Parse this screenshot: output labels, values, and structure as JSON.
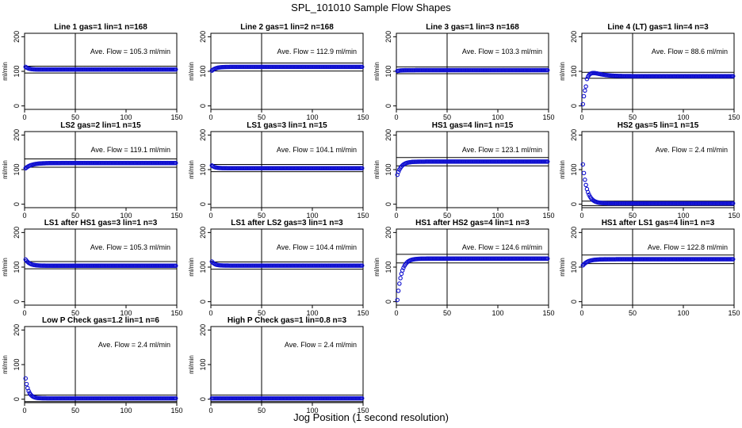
{
  "figure": {
    "title": "SPL_101010  Sample Flow Shapes",
    "xlabel": "Jog Position (1 second resolution)"
  },
  "chart_data": [
    {
      "type": "scatter",
      "title": "Line 1 gas=1 lin=1 n=168",
      "ylabel": "ml/min",
      "annotation": "Ave. Flow =  105.3  ml/min",
      "xlim": [
        0,
        150
      ],
      "ylim": [
        -10,
        210
      ],
      "x_ticks": [
        0,
        50,
        100,
        150
      ],
      "y_ticks": [
        0,
        100,
        200
      ],
      "vline": 50,
      "hlines": [
        95,
        115
      ],
      "profile": {
        "start": 113,
        "steady": 105.3,
        "tau": 3
      }
    },
    {
      "type": "scatter",
      "title": "Line 2 gas=1 lin=2 n=168",
      "ylabel": "ml/min",
      "annotation": "Ave. Flow =  112.9  ml/min",
      "xlim": [
        0,
        150
      ],
      "ylim": [
        -10,
        210
      ],
      "x_ticks": [
        0,
        50,
        100,
        150
      ],
      "y_ticks": [
        0,
        100,
        200
      ],
      "vline": 50,
      "hlines": [
        101,
        124
      ],
      "profile": {
        "start": 102,
        "steady": 112.9,
        "tau": 4
      }
    },
    {
      "type": "scatter",
      "title": "Line 3 gas=1 lin=3 n=168",
      "ylabel": "ml/min",
      "annotation": "Ave. Flow =  103.3  ml/min",
      "xlim": [
        0,
        150
      ],
      "ylim": [
        -10,
        210
      ],
      "x_ticks": [
        0,
        50,
        100,
        150
      ],
      "y_ticks": [
        0,
        100,
        200
      ],
      "vline": 50,
      "hlines": [
        93,
        113
      ],
      "profile": {
        "start": 101,
        "steady": 103.3,
        "tau": 3
      }
    },
    {
      "type": "scatter",
      "title": "Line 4 (LT) gas=1 lin=4 n=3",
      "ylabel": "ml/min",
      "annotation": "Ave. Flow =  88.6  ml/min",
      "xlim": [
        0,
        150
      ],
      "ylim": [
        -10,
        210
      ],
      "x_ticks": [
        0,
        50,
        100,
        150
      ],
      "y_ticks": [
        0,
        100,
        200
      ],
      "vline": 50,
      "hlines": [
        80,
        97
      ],
      "profile": {
        "start": 5,
        "steady": 86,
        "tau": 3,
        "overshoot": 14
      }
    },
    {
      "type": "scatter",
      "title": "LS2 gas=2 lin=1 n=15",
      "ylabel": "ml/min",
      "annotation": "Ave. Flow =  119.1  ml/min",
      "xlim": [
        0,
        150
      ],
      "ylim": [
        -10,
        210
      ],
      "x_ticks": [
        0,
        50,
        100,
        150
      ],
      "y_ticks": [
        0,
        100,
        200
      ],
      "vline": 50,
      "hlines": [
        107,
        131
      ],
      "profile": {
        "start": 104,
        "steady": 119.1,
        "tau": 6
      }
    },
    {
      "type": "scatter",
      "title": "LS1 gas=3 lin=1 n=15",
      "ylabel": "ml/min",
      "annotation": "Ave. Flow =  104.1  ml/min",
      "xlim": [
        0,
        150
      ],
      "ylim": [
        -10,
        210
      ],
      "x_ticks": [
        0,
        50,
        100,
        150
      ],
      "y_ticks": [
        0,
        100,
        200
      ],
      "vline": 50,
      "hlines": [
        94,
        115
      ],
      "profile": {
        "start": 112,
        "steady": 104.1,
        "tau": 3
      }
    },
    {
      "type": "scatter",
      "title": "HS1 gas=4 lin=1 n=15",
      "ylabel": "ml/min",
      "annotation": "Ave. Flow =  123.1  ml/min",
      "xlim": [
        0,
        150
      ],
      "ylim": [
        -10,
        210
      ],
      "x_ticks": [
        0,
        50,
        100,
        150
      ],
      "y_ticks": [
        0,
        100,
        200
      ],
      "vline": 50,
      "hlines": [
        111,
        135
      ],
      "profile": {
        "start": 85,
        "steady": 123.1,
        "tau": 4
      }
    },
    {
      "type": "scatter",
      "title": "HS2 gas=5 lin=1 n=15",
      "ylabel": "ml/min",
      "annotation": "Ave. Flow =  2.4  ml/min",
      "xlim": [
        0,
        150
      ],
      "ylim": [
        -10,
        210
      ],
      "x_ticks": [
        0,
        50,
        100,
        150
      ],
      "y_ticks": [
        0,
        100,
        200
      ],
      "vline": 50,
      "hlines": [
        -4,
        9
      ],
      "profile": {
        "start": 115,
        "steady": 2.4,
        "tau": 4
      }
    },
    {
      "type": "scatter",
      "title": "LS1 after HS1 gas=3 lin=1 n=3",
      "ylabel": "ml/min",
      "annotation": "Ave. Flow =  105.3  ml/min",
      "xlim": [
        0,
        150
      ],
      "ylim": [
        -10,
        210
      ],
      "x_ticks": [
        0,
        50,
        100,
        150
      ],
      "y_ticks": [
        0,
        100,
        200
      ],
      "vline": 50,
      "hlines": [
        95,
        116
      ],
      "profile": {
        "start": 122,
        "steady": 104,
        "tau": 4
      }
    },
    {
      "type": "scatter",
      "title": "LS1 after LS2 gas=3 lin=1 n=3",
      "ylabel": "ml/min",
      "annotation": "Ave. Flow =  104.4  ml/min",
      "xlim": [
        0,
        150
      ],
      "ylim": [
        -10,
        210
      ],
      "x_ticks": [
        0,
        50,
        100,
        150
      ],
      "y_ticks": [
        0,
        100,
        200
      ],
      "vline": 50,
      "hlines": [
        94,
        115
      ],
      "profile": {
        "start": 116,
        "steady": 104.4,
        "tau": 3
      }
    },
    {
      "type": "scatter",
      "title": "HS1 after HS2 gas=4 lin=1 n=3",
      "ylabel": "ml/min",
      "annotation": "Ave. Flow =  124.6  ml/min",
      "xlim": [
        0,
        150
      ],
      "ylim": [
        -10,
        210
      ],
      "x_ticks": [
        0,
        50,
        100,
        150
      ],
      "y_ticks": [
        0,
        100,
        200
      ],
      "vline": 50,
      "hlines": [
        112,
        137
      ],
      "profile": {
        "start": 5,
        "steady": 124.6,
        "tau": 4
      }
    },
    {
      "type": "scatter",
      "title": "HS1 after LS1 gas=4 lin=1 n=3",
      "ylabel": "ml/min",
      "annotation": "Ave. Flow =  122.8  ml/min",
      "xlim": [
        0,
        150
      ],
      "ylim": [
        -10,
        210
      ],
      "x_ticks": [
        0,
        50,
        100,
        150
      ],
      "y_ticks": [
        0,
        100,
        200
      ],
      "vline": 50,
      "hlines": [
        110,
        135
      ],
      "profile": {
        "start": 105,
        "steady": 122.8,
        "tau": 5
      }
    },
    {
      "type": "scatter",
      "title": "Low P Check gas=1.2 lin=1 n=6",
      "ylabel": "ml/min",
      "annotation": "Ave. Flow =  2.4  ml/min",
      "xlim": [
        0,
        150
      ],
      "ylim": [
        -10,
        210
      ],
      "x_ticks": [
        0,
        50,
        100,
        150
      ],
      "y_ticks": [
        0,
        100,
        200
      ],
      "vline": 50,
      "hlines": [
        -7,
        12
      ],
      "profile": {
        "start": 60,
        "steady": 2.4,
        "tau": 3
      }
    },
    {
      "type": "scatter",
      "title": "High P Check gas=1 lin=0.8 n=3",
      "ylabel": "ml/min",
      "annotation": "Ave. Flow =  2.4  ml/min",
      "xlim": [
        0,
        150
      ],
      "ylim": [
        -10,
        210
      ],
      "x_ticks": [
        0,
        50,
        100,
        150
      ],
      "y_ticks": [
        0,
        100,
        200
      ],
      "vline": 50,
      "hlines": [
        -7,
        12
      ],
      "profile": {
        "start": 2.4,
        "steady": 2.4,
        "tau": 1
      }
    }
  ],
  "style": {
    "point_color": "#1010d0",
    "line_color": "#000000"
  }
}
